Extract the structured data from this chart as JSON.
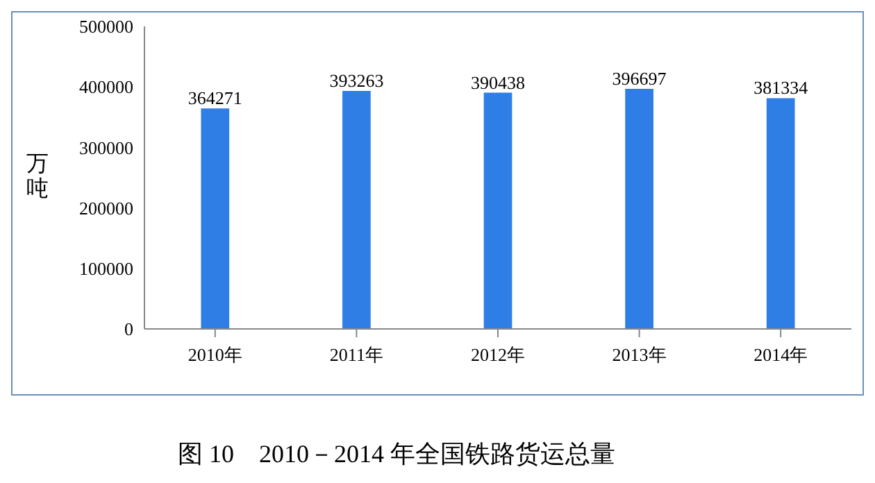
{
  "chart_data": {
    "type": "bar",
    "title": "图 10　2010－2014 年全国铁路货运总量",
    "ylabel": "万吨",
    "categories": [
      "2010年",
      "2011年",
      "2012年",
      "2013年",
      "2014年"
    ],
    "values": [
      364271,
      393263,
      390438,
      396697,
      381334
    ],
    "color": "#2f7ee6",
    "ylim": [
      0,
      500000
    ],
    "yticks": [
      0,
      100000,
      200000,
      300000,
      400000,
      500000
    ],
    "grid": false,
    "data_labels": true
  }
}
